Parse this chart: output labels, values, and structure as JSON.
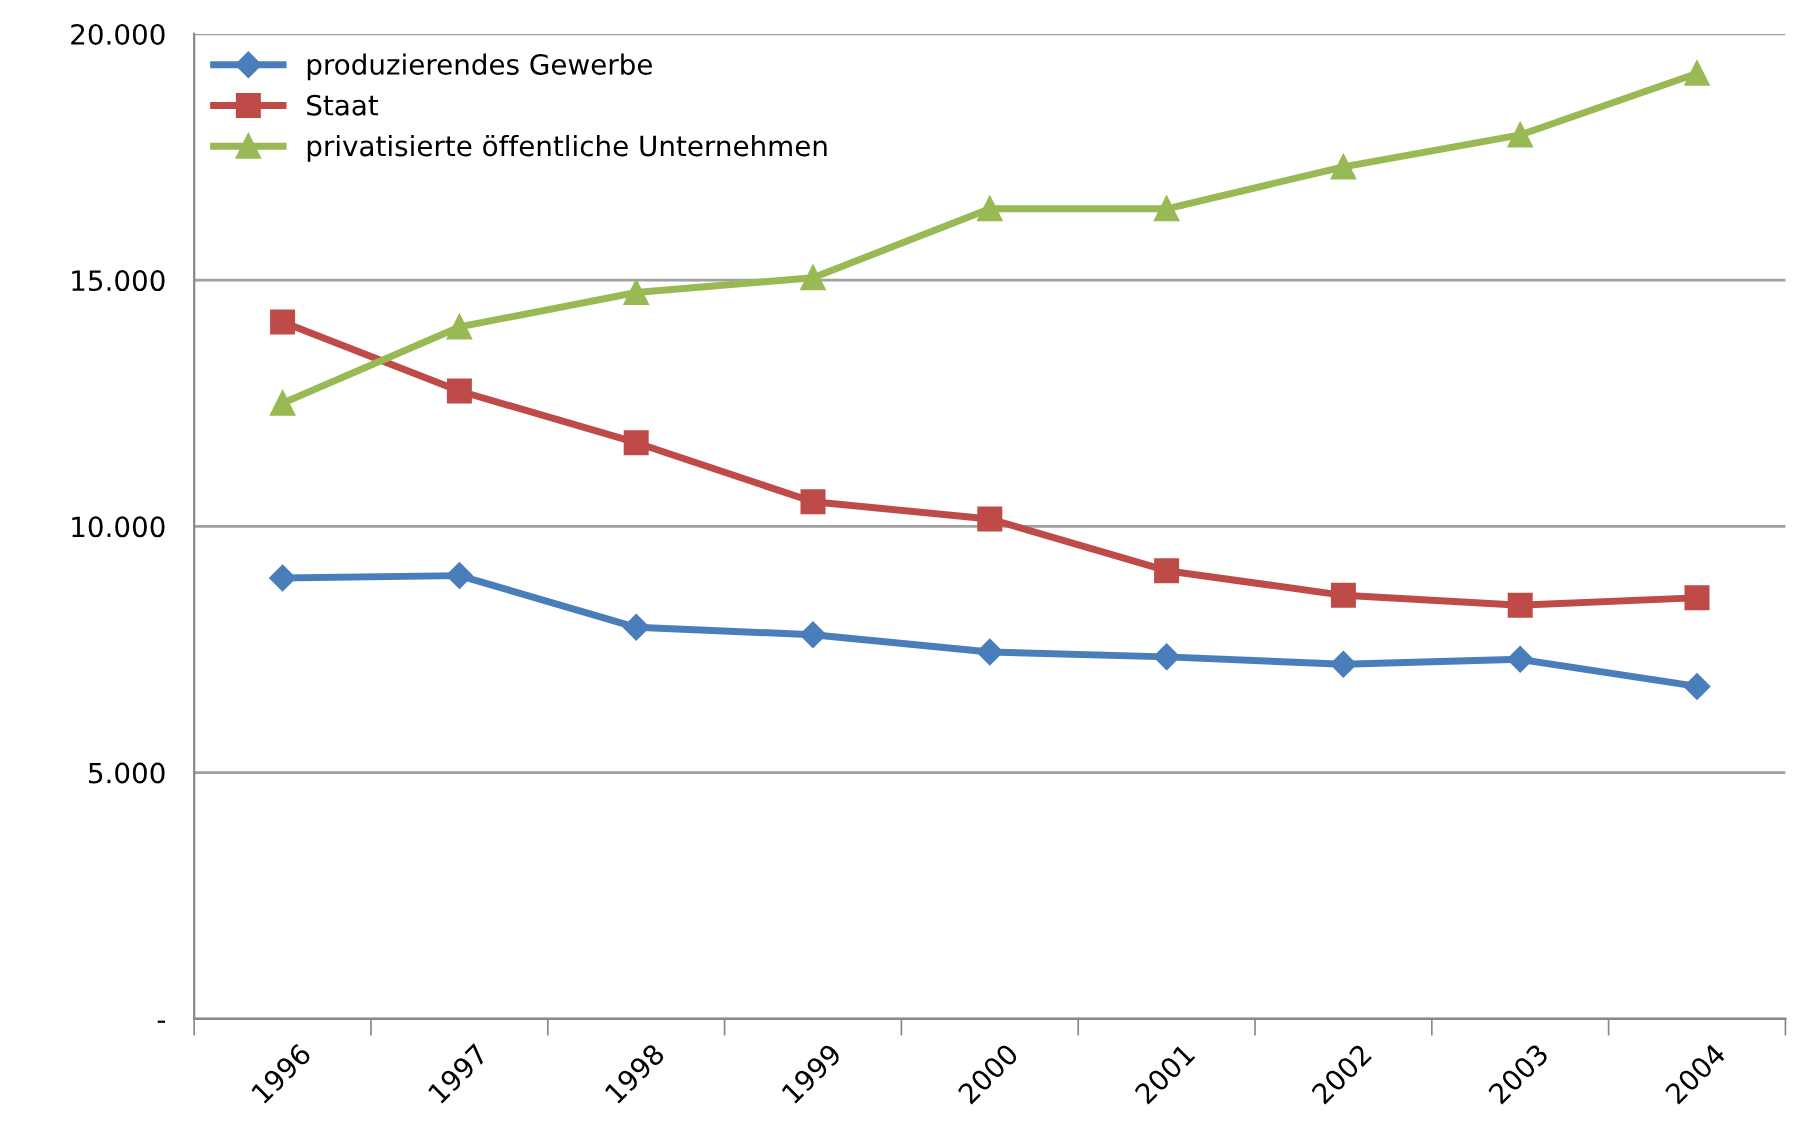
{
  "chart_data": {
    "type": "line",
    "categories": [
      "1996",
      "1997",
      "1998",
      "1999",
      "2000",
      "2001",
      "2002",
      "2003",
      "2004"
    ],
    "series": [
      {
        "name": "produzierendes Gewerbe",
        "color": "#4a7ebb",
        "marker": "diamond",
        "values": [
          8950,
          9000,
          7950,
          7800,
          7450,
          7350,
          7200,
          7300,
          6750
        ]
      },
      {
        "name": "Staat",
        "color": "#be4b48",
        "marker": "square",
        "values": [
          14150,
          12750,
          11700,
          10500,
          10150,
          9100,
          8600,
          8400,
          8550
        ]
      },
      {
        "name": "privatisierte öffentliche Unternehmen",
        "color": "#98b954",
        "marker": "triangle",
        "values": [
          12500,
          14050,
          14750,
          15050,
          16450,
          16450,
          17300,
          17950,
          19200
        ]
      }
    ],
    "ylim": [
      0,
      20000
    ],
    "yticks": [
      {
        "value": 0,
        "label": "-"
      },
      {
        "value": 5000,
        "label": "5.000"
      },
      {
        "value": 10000,
        "label": "10.000"
      },
      {
        "value": 15000,
        "label": "15.000"
      },
      {
        "value": 20000,
        "label": "20.000"
      }
    ],
    "grid": "y",
    "legend": "top left",
    "line_style": "solid"
  }
}
